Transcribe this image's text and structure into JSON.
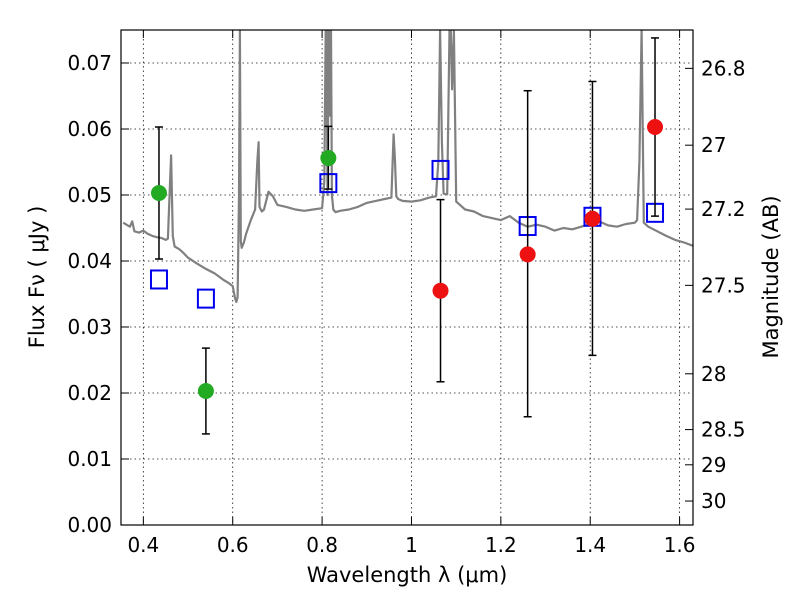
{
  "chart_data": {
    "type": "scatter",
    "title": "",
    "xlabel": "Wavelength  λ (μm)",
    "ylabel": "Flux  Fν  ( μJy )",
    "y2label": "Magnitude (AB)",
    "xlim": [
      0.35,
      1.63
    ],
    "ylim": [
      0.0,
      0.075
    ],
    "grid": true,
    "legend": "none",
    "colors": {
      "spectrum": "#808080",
      "green_points": "#22aa22",
      "red_points": "#ee1111",
      "model_squares": "#0000ee",
      "error_bars": "#000000"
    },
    "x_ticks": [
      {
        "value": 0.4,
        "label": "0.4"
      },
      {
        "value": 0.6,
        "label": "0.6"
      },
      {
        "value": 0.8,
        "label": "0.8"
      },
      {
        "value": 1.0,
        "label": "1"
      },
      {
        "value": 1.2,
        "label": "1.2"
      },
      {
        "value": 1.4,
        "label": "1.4"
      },
      {
        "value": 1.6,
        "label": "1.6"
      }
    ],
    "y_ticks": [
      {
        "value": 0.0,
        "label": "0.00"
      },
      {
        "value": 0.01,
        "label": "0.01"
      },
      {
        "value": 0.02,
        "label": "0.02"
      },
      {
        "value": 0.03,
        "label": "0.03"
      },
      {
        "value": 0.04,
        "label": "0.04"
      },
      {
        "value": 0.05,
        "label": "0.05"
      },
      {
        "value": 0.06,
        "label": "0.06"
      },
      {
        "value": 0.07,
        "label": "0.07"
      }
    ],
    "y2_ticks": [
      {
        "mag": 26.8,
        "label": "26.8"
      },
      {
        "mag": 27.0,
        "label": "27"
      },
      {
        "mag": 27.2,
        "label": "27.2"
      },
      {
        "mag": 27.5,
        "label": "27.5"
      },
      {
        "mag": 28.0,
        "label": "28"
      },
      {
        "mag": 28.5,
        "label": "28.5"
      },
      {
        "mag": 29.0,
        "label": "29"
      },
      {
        "mag": 30.0,
        "label": "30"
      }
    ],
    "y2_mag_zero_flux_ujy": 3631000000,
    "series": [
      {
        "kind": "points",
        "color_key": "green_points",
        "points": [
          {
            "x": 0.435,
            "y": 0.0503,
            "ylo": 0.0403,
            "yhi": 0.0603
          },
          {
            "x": 0.54,
            "y": 0.0203,
            "ylo": 0.0138,
            "yhi": 0.0268
          },
          {
            "x": 0.814,
            "y": 0.0556,
            "ylo": 0.0509,
            "yhi": 0.0604
          }
        ]
      },
      {
        "kind": "points",
        "color_key": "red_points",
        "points": [
          {
            "x": 1.065,
            "y": 0.0355,
            "ylo": 0.0217,
            "yhi": 0.0493
          },
          {
            "x": 1.26,
            "y": 0.041,
            "ylo": 0.0164,
            "yhi": 0.0658
          },
          {
            "x": 1.405,
            "y": 0.0464,
            "ylo": 0.0257,
            "yhi": 0.0672
          },
          {
            "x": 1.545,
            "y": 0.0603,
            "ylo": 0.0468,
            "yhi": 0.0738
          }
        ]
      },
      {
        "kind": "squares",
        "color_key": "model_squares",
        "points": [
          {
            "x": 0.435,
            "y": 0.0372
          },
          {
            "x": 0.54,
            "y": 0.0343
          },
          {
            "x": 0.814,
            "y": 0.0518
          },
          {
            "x": 1.065,
            "y": 0.0538
          },
          {
            "x": 1.26,
            "y": 0.0453
          },
          {
            "x": 1.405,
            "y": 0.0467
          },
          {
            "x": 1.545,
            "y": 0.0473
          }
        ]
      },
      {
        "kind": "line",
        "color_key": "spectrum",
        "x": [
          0.355,
          0.37,
          0.375,
          0.38,
          0.39,
          0.4,
          0.41,
          0.42,
          0.43,
          0.44,
          0.45,
          0.455,
          0.458,
          0.462,
          0.466,
          0.47,
          0.48,
          0.49,
          0.5,
          0.52,
          0.54,
          0.56,
          0.58,
          0.59,
          0.6,
          0.605,
          0.608,
          0.611,
          0.614,
          0.616,
          0.618,
          0.62,
          0.625,
          0.63,
          0.64,
          0.65,
          0.655,
          0.658,
          0.66,
          0.665,
          0.67,
          0.68,
          0.69,
          0.7,
          0.72,
          0.74,
          0.76,
          0.78,
          0.8,
          0.805,
          0.808,
          0.81,
          0.812,
          0.815,
          0.818,
          0.82,
          0.822,
          0.825,
          0.83,
          0.84,
          0.86,
          0.88,
          0.9,
          0.92,
          0.94,
          0.955,
          0.96,
          0.963,
          0.966,
          0.97,
          0.98,
          1.0,
          1.02,
          1.04,
          1.055,
          1.06,
          1.064,
          1.068,
          1.072,
          1.08,
          1.085,
          1.088,
          1.091,
          1.095,
          1.1,
          1.12,
          1.14,
          1.16,
          1.18,
          1.2,
          1.22,
          1.24,
          1.26,
          1.28,
          1.3,
          1.32,
          1.34,
          1.36,
          1.38,
          1.4,
          1.42,
          1.44,
          1.46,
          1.48,
          1.5,
          1.505,
          1.51,
          1.515,
          1.52,
          1.53,
          1.55,
          1.57,
          1.59,
          1.61,
          1.63
        ],
        "y": [
          0.0458,
          0.0452,
          0.046,
          0.0445,
          0.0443,
          0.0446,
          0.0441,
          0.0438,
          0.0436,
          0.0435,
          0.0432,
          0.0434,
          0.049,
          0.056,
          0.0438,
          0.0422,
          0.0418,
          0.0412,
          0.0405,
          0.0396,
          0.0388,
          0.0381,
          0.0371,
          0.0367,
          0.0362,
          0.0344,
          0.0338,
          0.0345,
          0.05,
          0.075,
          0.043,
          0.042,
          0.0428,
          0.0441,
          0.0461,
          0.0478,
          0.055,
          0.058,
          0.0482,
          0.0475,
          0.0478,
          0.0505,
          0.0498,
          0.0485,
          0.0482,
          0.0478,
          0.0476,
          0.0478,
          0.048,
          0.052,
          0.075,
          0.075,
          0.05,
          0.075,
          0.062,
          0.075,
          0.05,
          0.0478,
          0.0474,
          0.0476,
          0.0478,
          0.0482,
          0.0488,
          0.0491,
          0.0494,
          0.0496,
          0.0592,
          0.0555,
          0.0498,
          0.0494,
          0.0491,
          0.049,
          0.0492,
          0.0496,
          0.0498,
          0.055,
          0.075,
          0.058,
          0.0502,
          0.0501,
          0.075,
          0.075,
          0.066,
          0.075,
          0.049,
          0.0478,
          0.0475,
          0.0468,
          0.0465,
          0.0462,
          0.0468,
          0.0458,
          0.0452,
          0.0455,
          0.0452,
          0.0446,
          0.045,
          0.0448,
          0.0452,
          0.0456,
          0.046,
          0.0454,
          0.0452,
          0.0456,
          0.0458,
          0.0462,
          0.055,
          0.075,
          0.0458,
          0.0452,
          0.0445,
          0.0438,
          0.0432,
          0.0428,
          0.0423
        ]
      }
    ]
  }
}
